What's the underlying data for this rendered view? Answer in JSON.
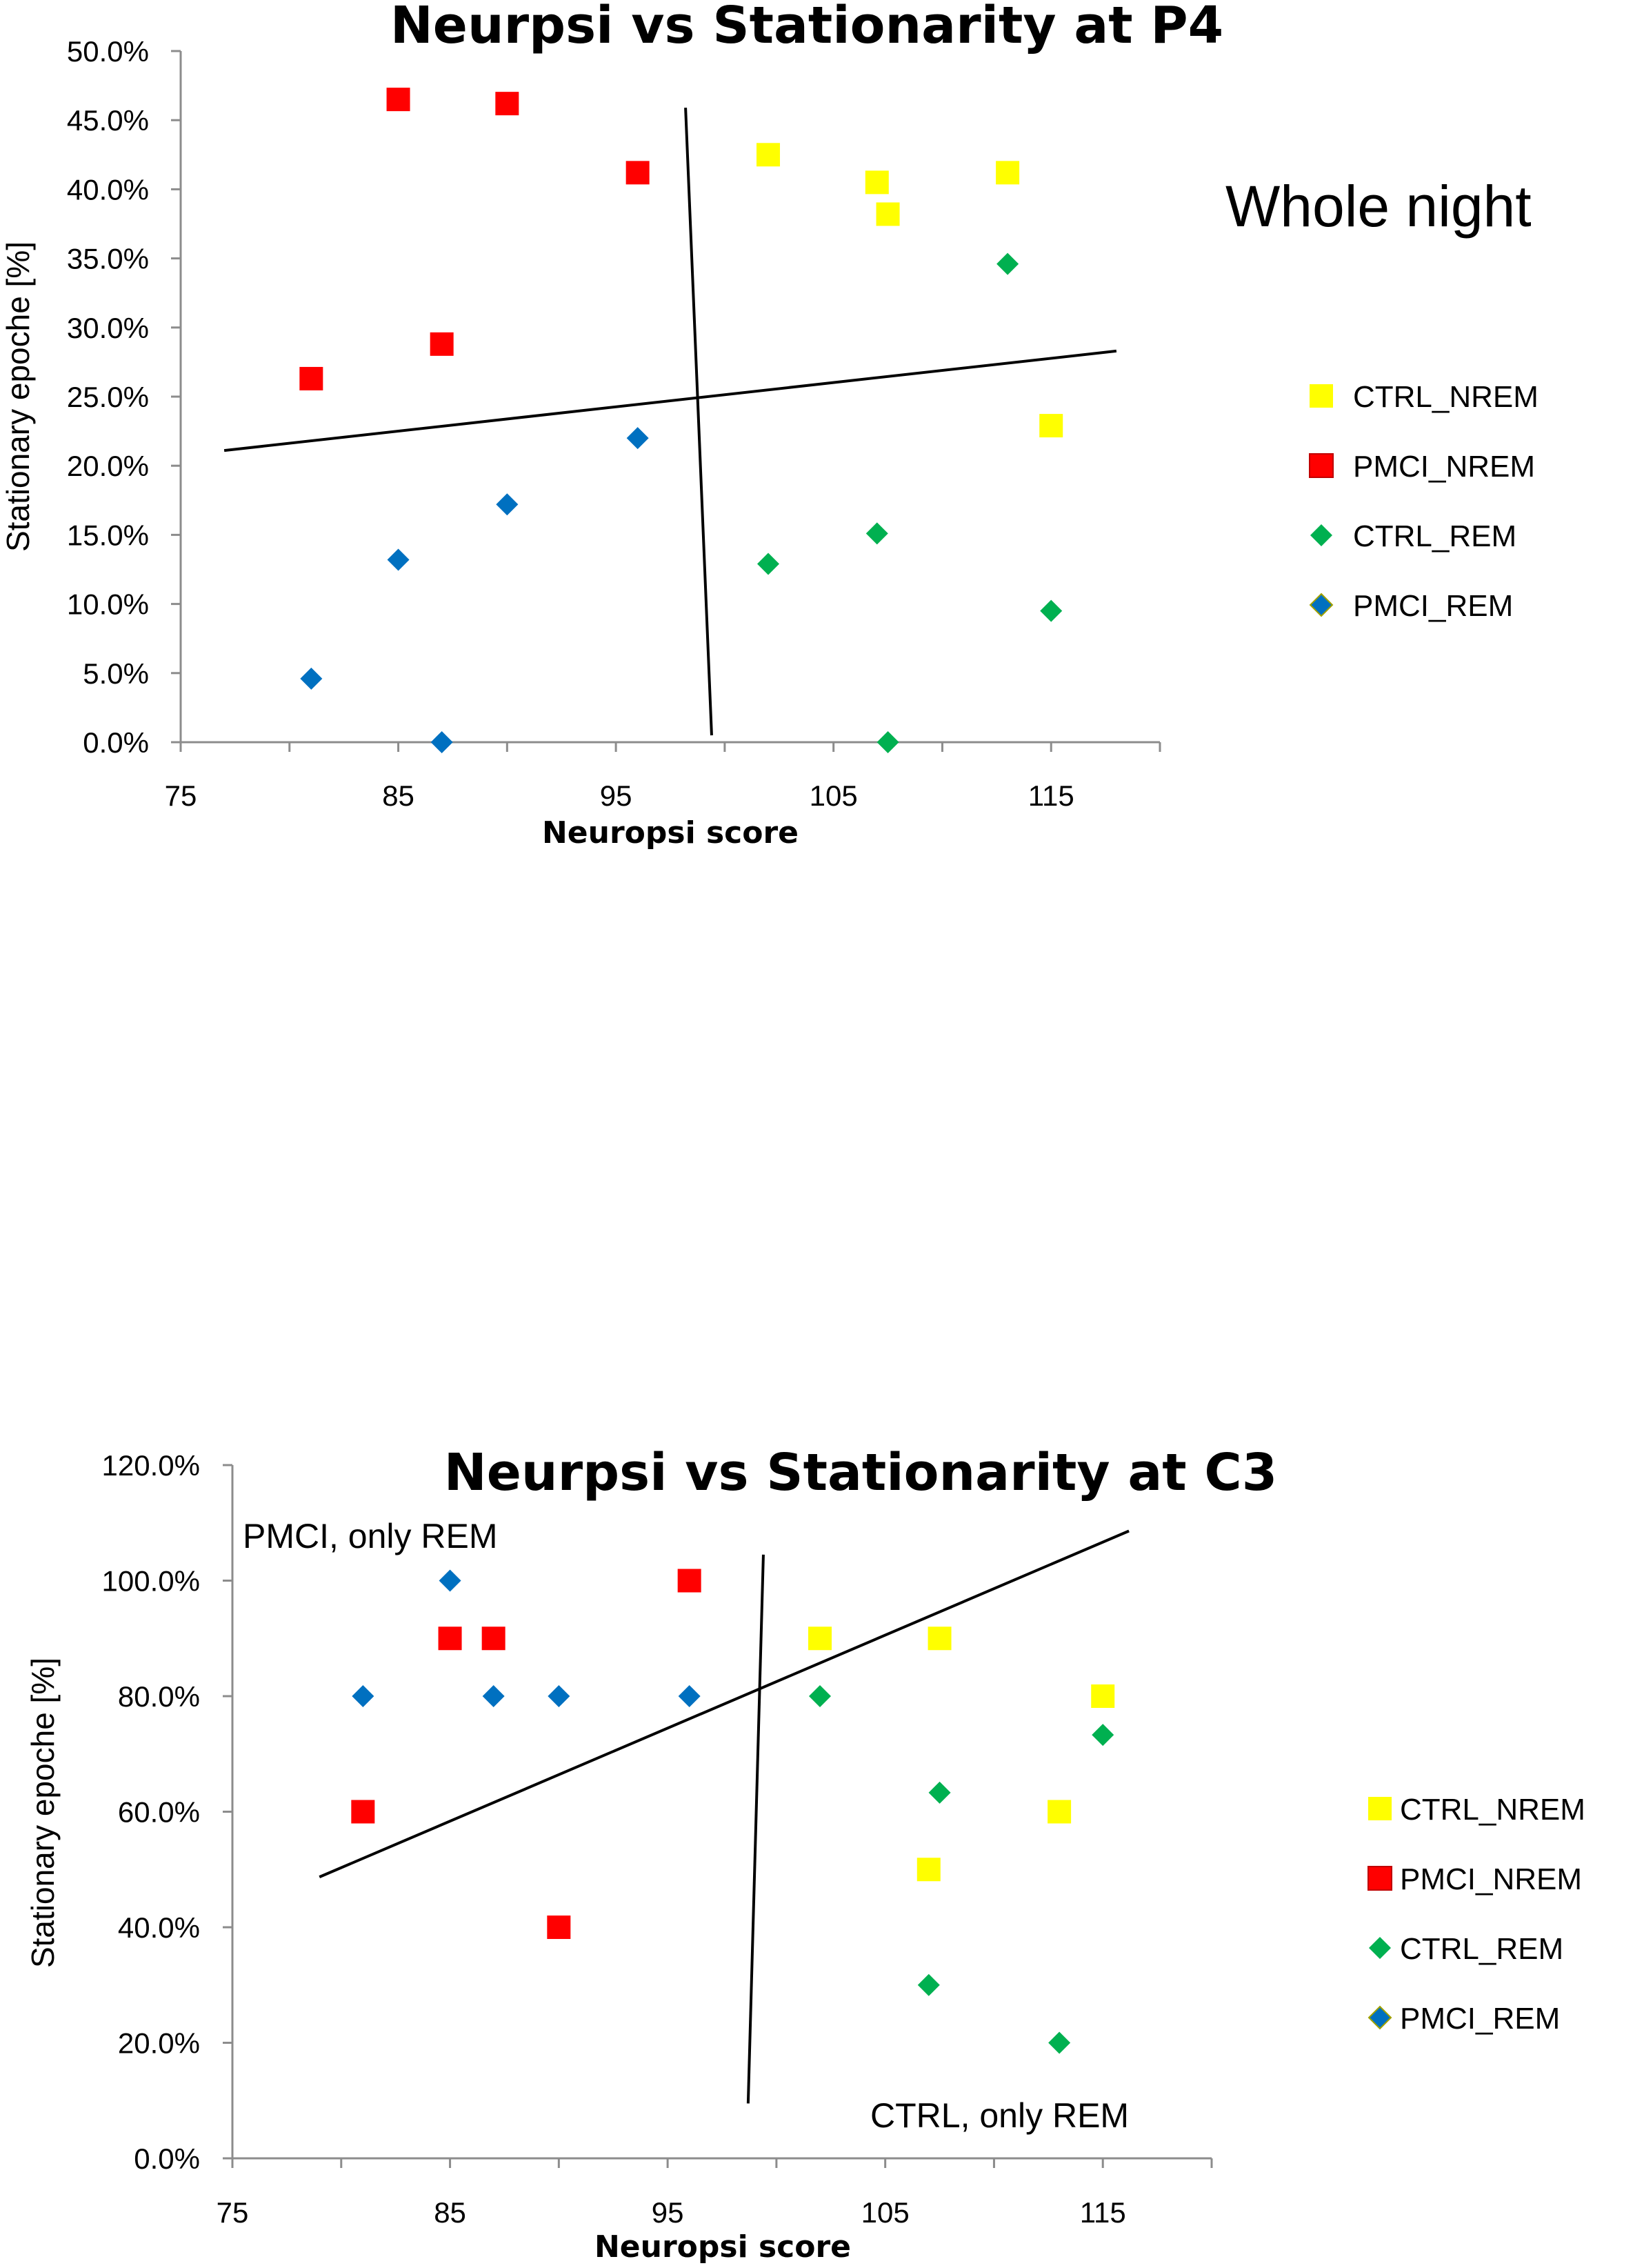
{
  "chart_data": [
    {
      "type": "scatter",
      "title": "Neurpsi vs Stationarity at P4",
      "xlabel": "Neuropsi score",
      "ylabel": "Stationary epoche [%]",
      "xlim": [
        75,
        120
      ],
      "ylim": [
        0,
        0.5
      ],
      "x_ticks": [
        "75",
        "85",
        "95",
        "105",
        "115"
      ],
      "y_ticks": [
        "0.0%",
        "5.0%",
        "10.0%",
        "15.0%",
        "20.0%",
        "25.0%",
        "30.0%",
        "35.0%",
        "40.0%",
        "45.0%",
        "50.0%"
      ],
      "annotations": [
        "Whole night"
      ],
      "legend_position": "right",
      "series": [
        {
          "name": "CTRL_NREM",
          "marker": "square",
          "color": "#ffff00",
          "points": [
            [
              102,
              0.425
            ],
            [
              107,
              0.405
            ],
            [
              107.5,
              0.382
            ],
            [
              113,
              0.412
            ],
            [
              115,
              0.229
            ]
          ]
        },
        {
          "name": "PMCI_NREM",
          "marker": "square",
          "color": "#ff0000",
          "points": [
            [
              85,
              0.465
            ],
            [
              90,
              0.462
            ],
            [
              96,
              0.412
            ],
            [
              87,
              0.288
            ],
            [
              81,
              0.263
            ]
          ]
        },
        {
          "name": "CTRL_REM",
          "marker": "diamond",
          "color": "#00b050",
          "points": [
            [
              113,
              0.346
            ],
            [
              102,
              0.129
            ],
            [
              107,
              0.151
            ],
            [
              115,
              0.095
            ],
            [
              107.5,
              0.0
            ]
          ]
        },
        {
          "name": "PMCI_REM",
          "marker": "diamond",
          "color": "#0070c0",
          "points": [
            [
              96,
              0.22
            ],
            [
              90,
              0.172
            ],
            [
              85,
              0.132
            ],
            [
              81,
              0.046
            ],
            [
              87,
              0.0
            ]
          ]
        }
      ],
      "lines": [
        [
          [
            77,
            0.211
          ],
          [
            118,
            0.283
          ]
        ],
        [
          [
            98.2,
            0.459
          ],
          [
            99.4,
            0.005
          ]
        ]
      ]
    },
    {
      "type": "scatter",
      "title": "Neurpsi vs Stationarity at C3",
      "xlabel": "Neuropsi score",
      "ylabel": "Stationary epoche [%]",
      "xlim": [
        75,
        120
      ],
      "ylim": [
        0,
        1.2
      ],
      "x_ticks": [
        "75",
        "85",
        "95",
        "105",
        "115"
      ],
      "y_ticks": [
        "0.0%",
        "20.0%",
        "40.0%",
        "60.0%",
        "80.0%",
        "100.0%",
        "120.0%"
      ],
      "annotations": [
        "PMCI, only REM",
        "CTRL, only REM"
      ],
      "legend_position": "right",
      "series": [
        {
          "name": "CTRL_NREM",
          "marker": "square",
          "color": "#ffff00",
          "points": [
            [
              102,
              0.9
            ],
            [
              107.5,
              0.9
            ],
            [
              115,
              0.8
            ],
            [
              113,
              0.6
            ],
            [
              107,
              0.5
            ]
          ]
        },
        {
          "name": "PMCI_NREM",
          "marker": "square",
          "color": "#ff0000",
          "points": [
            [
              85,
              0.9
            ],
            [
              87,
              0.9
            ],
            [
              96,
              1.0
            ],
            [
              81,
              0.6
            ],
            [
              90,
              0.4
            ]
          ]
        },
        {
          "name": "CTRL_REM",
          "marker": "diamond",
          "color": "#00b050",
          "points": [
            [
              102,
              0.8
            ],
            [
              115,
              0.733
            ],
            [
              107.5,
              0.633
            ],
            [
              107,
              0.3
            ],
            [
              113,
              0.2
            ]
          ]
        },
        {
          "name": "PMCI_REM",
          "marker": "diamond",
          "color": "#0070c0",
          "points": [
            [
              85,
              1.0
            ],
            [
              81,
              0.8
            ],
            [
              87,
              0.8
            ],
            [
              90,
              0.8
            ],
            [
              96,
              0.8
            ]
          ]
        }
      ],
      "lines": [
        [
          [
            79,
            0.487
          ],
          [
            116.2,
            1.086
          ]
        ],
        [
          [
            99.4,
            1.045
          ],
          [
            98.7,
            0.095
          ]
        ]
      ]
    }
  ]
}
